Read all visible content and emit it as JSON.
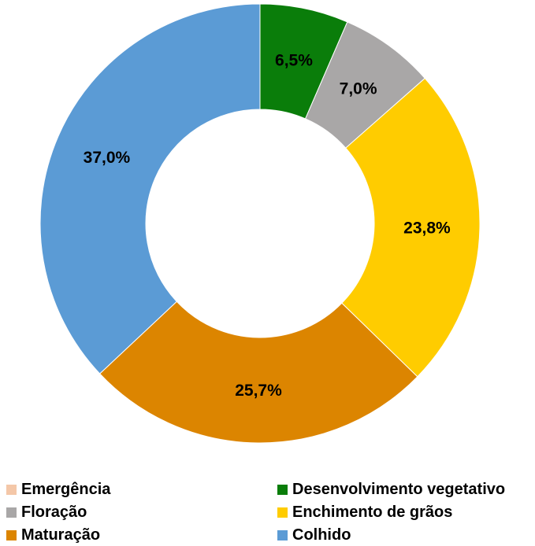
{
  "chart_data": {
    "type": "pie",
    "donut": true,
    "title": "",
    "categories": [
      "Emergência",
      "Desenvolvimento vegetativo",
      "Floração",
      "Enchimento de grãos",
      "Maturação",
      "Colhido"
    ],
    "values": [
      0,
      6.5,
      7.0,
      23.8,
      25.7,
      37.0
    ],
    "labels": [
      "",
      "6,5%",
      "7,0%",
      "23,8%",
      "25,7%",
      "37,0%"
    ],
    "colors": [
      "#f4c7a8",
      "#0a7d0a",
      "#a9a7a7",
      "#ffcc00",
      "#dc8500",
      "#5b9bd5"
    ],
    "legend_position": "bottom",
    "unit": "%"
  }
}
